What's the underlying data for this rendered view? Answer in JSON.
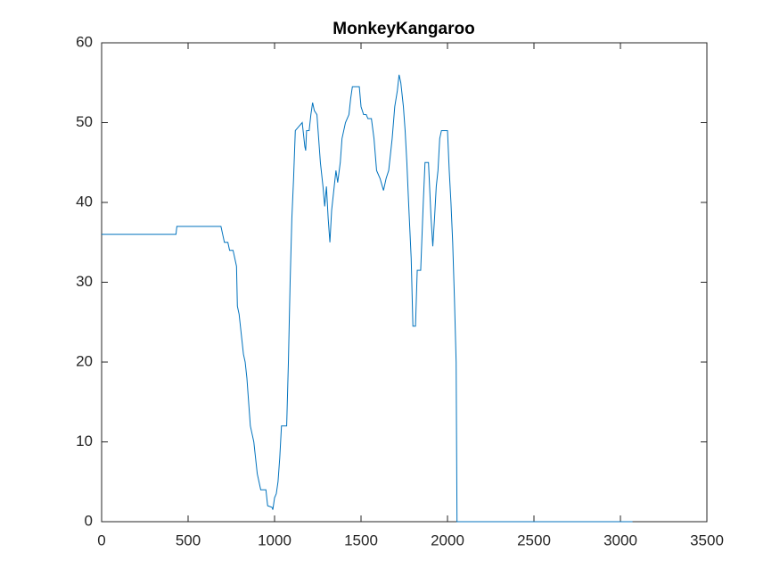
{
  "chart_data": {
    "type": "line",
    "title": "MonkeyKangaroo",
    "color": "#0072bd",
    "x": [
      0,
      430,
      435,
      690,
      700,
      710,
      730,
      740,
      760,
      770,
      780,
      785,
      795,
      800,
      810,
      820,
      830,
      840,
      850,
      860,
      870,
      880,
      890,
      900,
      910,
      920,
      950,
      960,
      985,
      990,
      1000,
      1010,
      1020,
      1030,
      1040,
      1070,
      1080,
      1090,
      1100,
      1110,
      1120,
      1140,
      1160,
      1175,
      1180,
      1185,
      1200,
      1210,
      1220,
      1230,
      1245,
      1255,
      1265,
      1280,
      1290,
      1300,
      1310,
      1320,
      1330,
      1345,
      1355,
      1365,
      1380,
      1390,
      1410,
      1430,
      1440,
      1450,
      1490,
      1500,
      1515,
      1530,
      1540,
      1560,
      1575,
      1590,
      1610,
      1630,
      1645,
      1660,
      1680,
      1695,
      1710,
      1720,
      1730,
      1745,
      1755,
      1765,
      1775,
      1790,
      1800,
      1815,
      1825,
      1845,
      1860,
      1870,
      1890,
      1905,
      1915,
      1925,
      1935,
      1945,
      1955,
      1965,
      2000,
      2010,
      2020,
      2030,
      2040,
      2050,
      2055,
      3070
    ],
    "values": [
      36,
      36,
      37,
      37,
      36,
      35,
      35,
      34,
      34,
      33,
      32,
      27,
      26,
      25,
      23,
      21,
      20,
      18,
      15,
      12,
      11,
      10,
      8,
      6,
      5,
      4,
      4,
      2,
      1.8,
      1.5,
      3,
      3.5,
      5,
      8,
      12,
      12,
      20,
      30,
      38,
      43,
      49,
      49.5,
      50,
      47,
      46.5,
      49,
      49,
      51,
      52.5,
      51.5,
      51,
      48,
      45,
      42,
      39.5,
      42,
      38,
      35,
      39,
      42,
      44,
      42.5,
      45,
      48,
      50,
      51,
      53,
      54.5,
      54.5,
      52,
      51,
      51,
      50.5,
      50.5,
      48,
      44,
      43,
      41.5,
      43,
      44,
      48,
      52,
      54,
      56,
      55,
      52,
      49,
      45,
      40,
      33,
      24.5,
      24.5,
      31.5,
      31.5,
      40,
      45,
      45,
      38,
      34.5,
      38,
      42,
      44,
      48,
      49,
      49,
      44,
      40,
      35,
      28,
      20,
      0,
      0
    ],
    "xlim": [
      0,
      3500
    ],
    "xticks": [
      0,
      500,
      1000,
      1500,
      2000,
      2500,
      3000,
      3500
    ],
    "ylim": [
      0,
      60
    ],
    "yticks": [
      0,
      10,
      20,
      30,
      40,
      50,
      60
    ]
  }
}
